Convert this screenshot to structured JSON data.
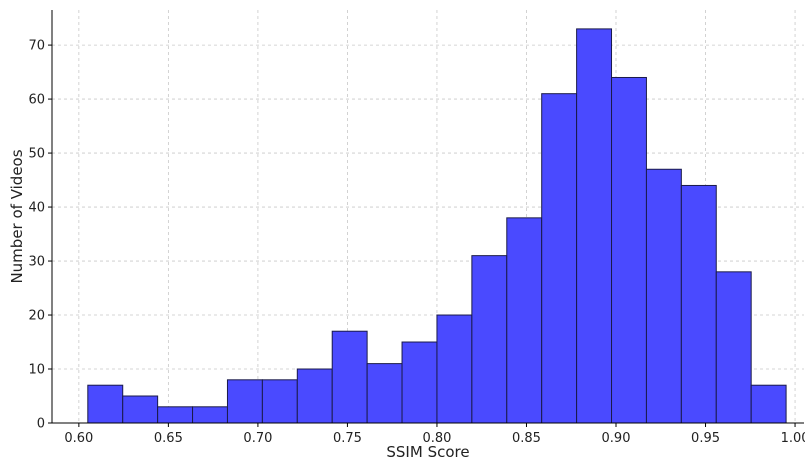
{
  "chart_data": {
    "type": "bar",
    "title": "",
    "xlabel": "SSIM Score",
    "ylabel": "Number of Videos",
    "xlim": [
      0.585,
      1.005
    ],
    "ylim": [
      0,
      76.5
    ],
    "grid": true,
    "bar_color": "#4a4aff",
    "edge_color": "#1a1a4a",
    "bins": [
      {
        "start": 0.605,
        "end": 0.6245,
        "count": 7
      },
      {
        "start": 0.6245,
        "end": 0.644,
        "count": 5
      },
      {
        "start": 0.644,
        "end": 0.6635,
        "count": 3
      },
      {
        "start": 0.6635,
        "end": 0.683,
        "count": 3
      },
      {
        "start": 0.683,
        "end": 0.7025,
        "count": 8
      },
      {
        "start": 0.7025,
        "end": 0.722,
        "count": 8
      },
      {
        "start": 0.722,
        "end": 0.7415,
        "count": 10
      },
      {
        "start": 0.7415,
        "end": 0.761,
        "count": 17
      },
      {
        "start": 0.761,
        "end": 0.7805,
        "count": 11
      },
      {
        "start": 0.7805,
        "end": 0.8,
        "count": 15
      },
      {
        "start": 0.8,
        "end": 0.8195,
        "count": 20
      },
      {
        "start": 0.8195,
        "end": 0.839,
        "count": 31
      },
      {
        "start": 0.839,
        "end": 0.8585,
        "count": 38
      },
      {
        "start": 0.8585,
        "end": 0.878,
        "count": 61
      },
      {
        "start": 0.878,
        "end": 0.8975,
        "count": 73
      },
      {
        "start": 0.8975,
        "end": 0.917,
        "count": 64
      },
      {
        "start": 0.917,
        "end": 0.9365,
        "count": 47
      },
      {
        "start": 0.9365,
        "end": 0.956,
        "count": 44
      },
      {
        "start": 0.956,
        "end": 0.9755,
        "count": 28
      },
      {
        "start": 0.9755,
        "end": 0.995,
        "count": 7
      }
    ],
    "x_ticks": [
      {
        "value": 0.6,
        "label": "0.60"
      },
      {
        "value": 0.65,
        "label": "0.65"
      },
      {
        "value": 0.7,
        "label": "0.70"
      },
      {
        "value": 0.75,
        "label": "0.75"
      },
      {
        "value": 0.8,
        "label": "0.80"
      },
      {
        "value": 0.85,
        "label": "0.85"
      },
      {
        "value": 0.9,
        "label": "0.90"
      },
      {
        "value": 0.95,
        "label": "0.95"
      },
      {
        "value": 1.0,
        "label": "1.00"
      }
    ],
    "y_ticks": [
      {
        "value": 0,
        "label": "0"
      },
      {
        "value": 10,
        "label": "10"
      },
      {
        "value": 20,
        "label": "20"
      },
      {
        "value": 30,
        "label": "30"
      },
      {
        "value": 40,
        "label": "40"
      },
      {
        "value": 50,
        "label": "50"
      },
      {
        "value": 60,
        "label": "60"
      },
      {
        "value": 70,
        "label": "70"
      }
    ]
  }
}
